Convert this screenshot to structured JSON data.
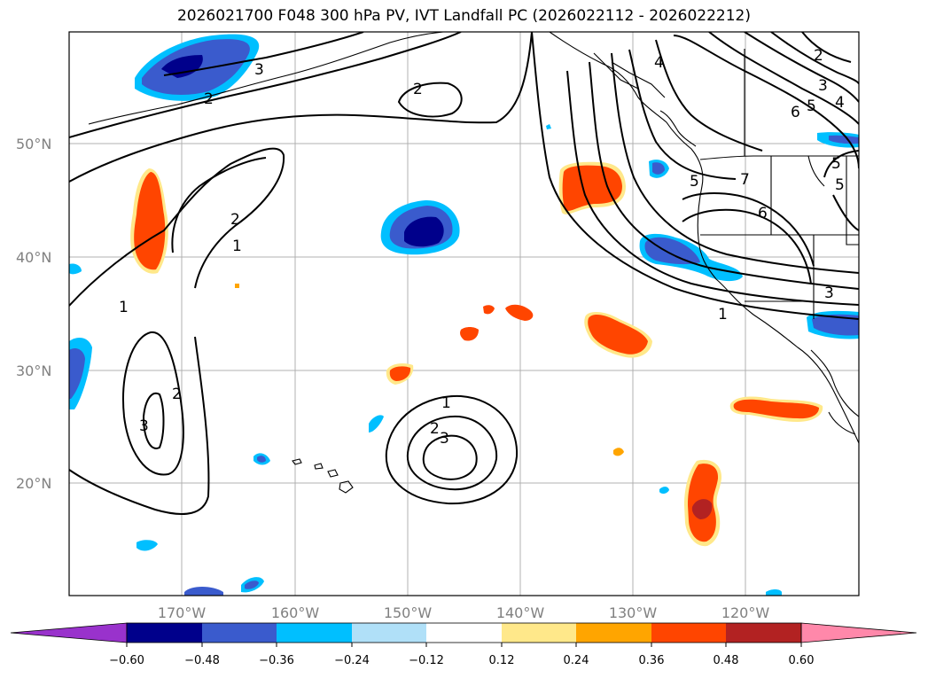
{
  "title": "2026021700 F048 300 hPa PV, IVT Landfall PC (2026022112 - 2026022212)",
  "map": {
    "lat_labels": [
      "50°N",
      "40°N",
      "30°N",
      "20°N"
    ],
    "lon_labels": [
      "170°W",
      "160°W",
      "150°W",
      "140°W",
      "130°W",
      "120°W"
    ],
    "contour_labels": [
      "3",
      "2",
      "2",
      "2",
      "1",
      "1",
      "2",
      "3",
      "1",
      "2",
      "3",
      "4",
      "5",
      "6",
      "7",
      "6",
      "5",
      "3",
      "1",
      "2",
      "3",
      "4",
      "5",
      "5"
    ],
    "colors": {
      "darkest_blue": "#00008b",
      "mid_blue": "#3a5bcd",
      "sky_blue": "#00bfff",
      "pale_blue": "#b0e0f8",
      "white": "#ffffff",
      "pale_yellow": "#ffe88a",
      "orange": "#ffa500",
      "red_orange": "#ff4500",
      "dark_red": "#b22222",
      "pink": "#ff88aa",
      "purple": "#9932cc",
      "contour": "#000000",
      "grid": "#b0b0b0"
    }
  },
  "colorbar": {
    "ticks": [
      "−0.60",
      "−0.48",
      "−0.36",
      "−0.24",
      "−0.12",
      "0.12",
      "0.24",
      "0.36",
      "0.48",
      "0.60"
    ],
    "segments": [
      "#9932cc",
      "#00008b",
      "#3a5bcd",
      "#00bfff",
      "#b0e0f8",
      "#ffffff",
      "#ffe88a",
      "#ffa500",
      "#ff4500",
      "#b22222",
      "#ff88aa"
    ]
  }
}
